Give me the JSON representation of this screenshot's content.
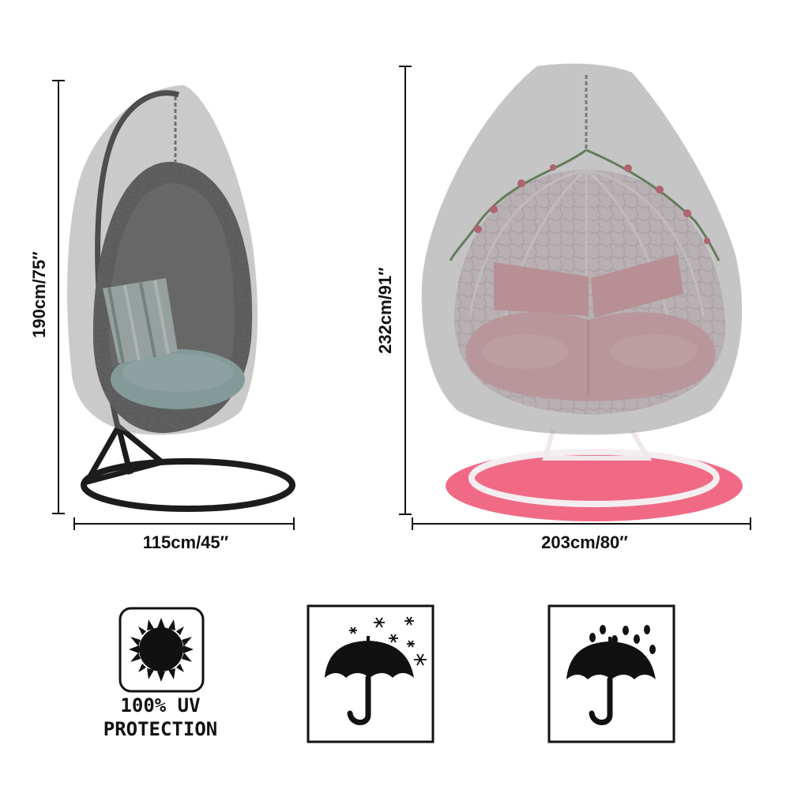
{
  "products": [
    {
      "name": "single-egg-chair-cover",
      "height_label": "190cm/75′′",
      "width_label": "115cm/45′′"
    },
    {
      "name": "double-egg-chair-cover",
      "height_label": "232cm/91′′",
      "width_label": "203cm/80′′"
    }
  ],
  "features": {
    "uv": {
      "icon": "sun-icon",
      "line1": "100% UV",
      "line2": "PROTECTION"
    },
    "snowproof": {
      "icon": "umbrella-snow-icon"
    },
    "waterproof": {
      "icon": "umbrella-rain-icon"
    }
  },
  "colors": {
    "cover": "#8c8c8c",
    "cushion_single": "#7fa6a2",
    "cushion_double": "#e8a2ae",
    "rug": "#f06a86",
    "frame": "#222222"
  }
}
